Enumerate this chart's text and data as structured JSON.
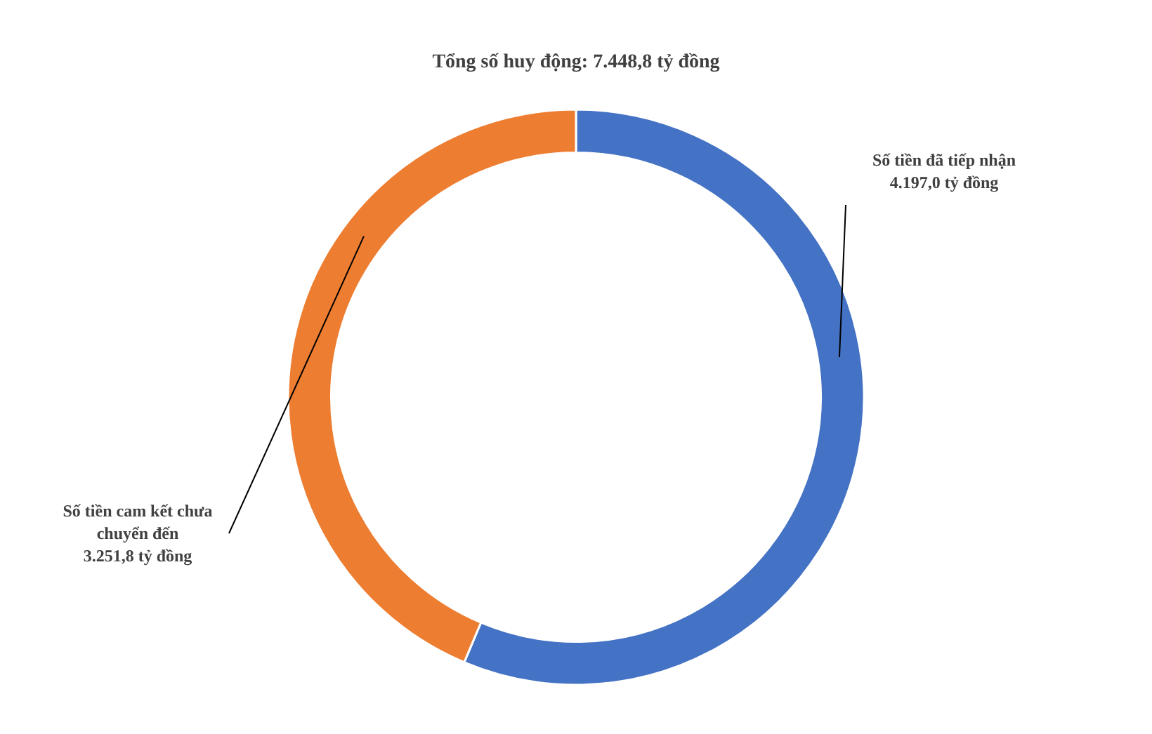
{
  "chart_data": {
    "type": "donut",
    "title": "Tổng số huy động: 7.448,8 tỷ đồng",
    "categories": [
      "Số tiền đã tiếp nhận",
      "Số tiền cam kết chưa chuyển đến"
    ],
    "values": [
      4197.0,
      3251.8
    ],
    "value_labels": [
      "4.197,0 tỷ đồng",
      "3.251,8 tỷ đồng"
    ],
    "colors": [
      "#4472c4",
      "#ed7d31"
    ]
  }
}
